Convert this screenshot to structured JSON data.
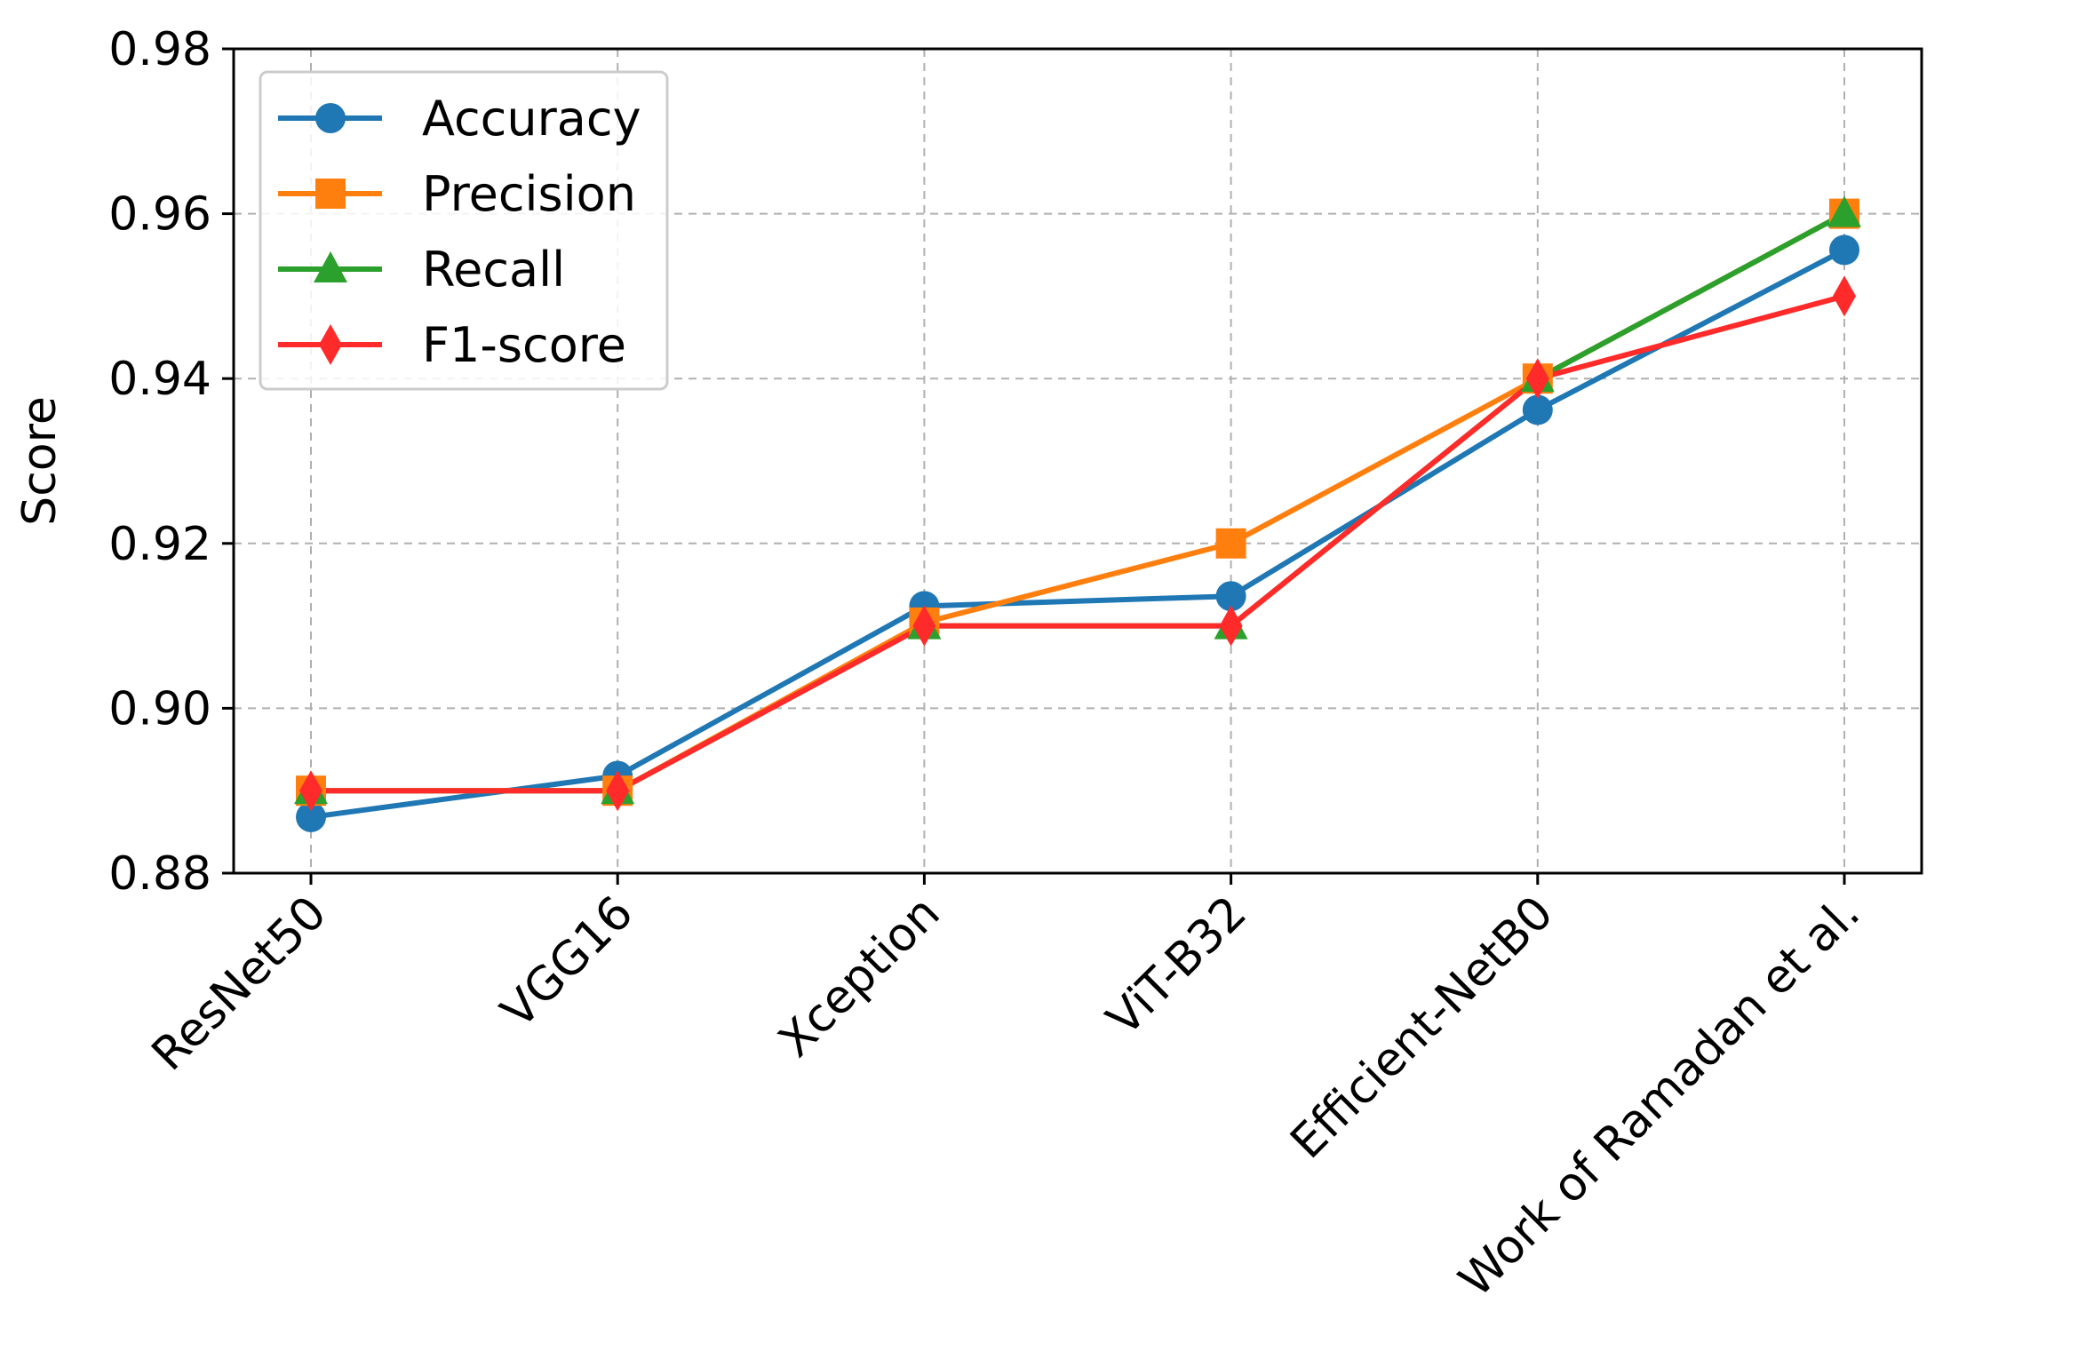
{
  "chart_data": {
    "type": "line",
    "title": "",
    "xlabel": "",
    "ylabel": "Score",
    "categories": [
      "ResNet50",
      "VGG16",
      "Xception",
      "ViT-B32",
      "Efficient-NetB0",
      "Work of Ramadan et al."
    ],
    "ylim": [
      0.88,
      0.98
    ],
    "yticks": [
      "0.88",
      "0.90",
      "0.92",
      "0.94",
      "0.96",
      "0.98"
    ],
    "grid": true,
    "legend_position": "top-left",
    "series": [
      {
        "name": "Accuracy",
        "color": "#1f77b4",
        "marker": "circle",
        "values": [
          0.8868,
          0.8918,
          0.9124,
          0.9136,
          0.9362,
          0.9556
        ]
      },
      {
        "name": "Precision",
        "color": "#ff7f0e",
        "marker": "square",
        "values": [
          0.89,
          0.89,
          0.9104,
          0.92,
          0.94,
          0.96
        ]
      },
      {
        "name": "Recall",
        "color": "#2ca02c",
        "marker": "triangle",
        "values": [
          0.89,
          0.89,
          0.91,
          0.91,
          0.94,
          0.96
        ]
      },
      {
        "name": "F1-score",
        "color": "#ff2a2a",
        "marker": "diamond",
        "values": [
          0.89,
          0.89,
          0.91,
          0.91,
          0.94,
          0.95
        ]
      }
    ]
  }
}
